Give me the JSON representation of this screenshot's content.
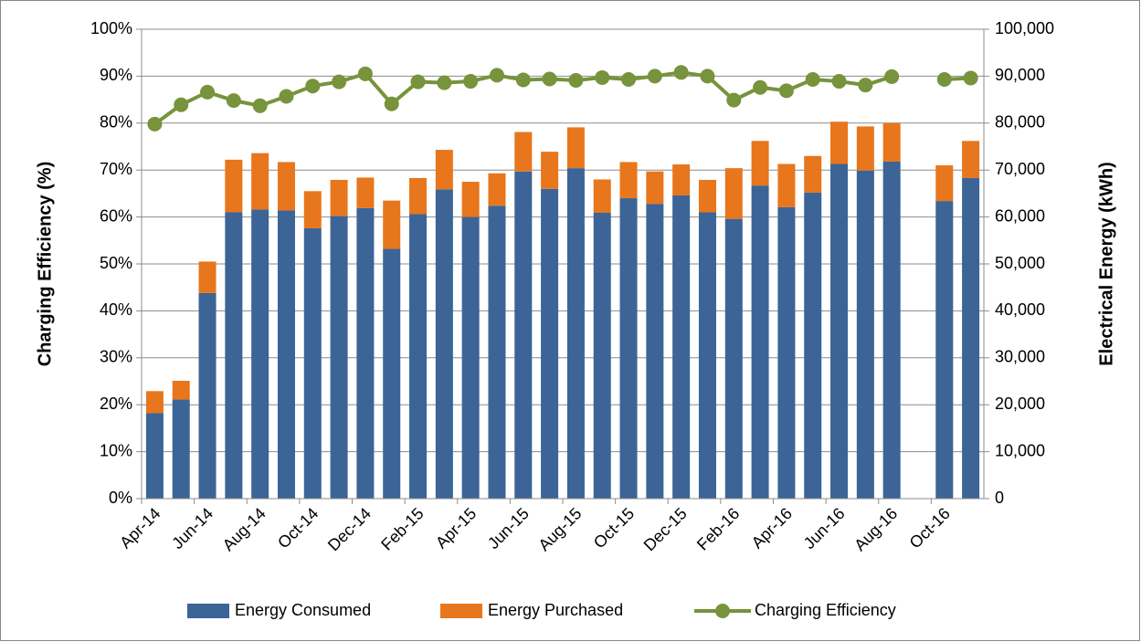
{
  "chart_data": {
    "type": "bar",
    "stacked": true,
    "categories": [
      "Apr-14",
      null,
      "Jun-14",
      null,
      "Aug-14",
      null,
      "Oct-14",
      null,
      "Dec-14",
      null,
      "Feb-15",
      null,
      "Apr-15",
      null,
      "Jun-15",
      null,
      "Aug-15",
      null,
      "Oct-15",
      null,
      "Dec-15",
      null,
      "Feb-16",
      null,
      "Apr-16",
      null,
      "Jun-16",
      null,
      "Aug-16",
      null,
      "Oct-16",
      null
    ],
    "series": [
      {
        "name": "Energy Consumed",
        "color": "#3c6496",
        "axis": "y2",
        "values": [
          18200,
          21100,
          43800,
          61000,
          61600,
          61400,
          57600,
          60200,
          61900,
          53200,
          60600,
          65900,
          60000,
          62400,
          69700,
          66000,
          70400,
          60900,
          64000,
          62800,
          64600,
          61000,
          59600,
          66700,
          62100,
          65200,
          71300,
          69900,
          71800,
          null,
          63400,
          68300
        ]
      },
      {
        "name": "Energy Purchased",
        "color": "#e8761c",
        "axis": "y2",
        "values": [
          4700,
          4000,
          6700,
          11200,
          12000,
          10300,
          7900,
          7700,
          6500,
          10300,
          7700,
          8400,
          7500,
          6900,
          8400,
          7900,
          8700,
          7100,
          7700,
          6900,
          6600,
          6900,
          10800,
          9500,
          9200,
          7800,
          9000,
          9400,
          8200,
          null,
          7600,
          7900
        ]
      },
      {
        "name": "Charging Efficiency",
        "color": "#77933c",
        "type": "line",
        "values": [
          79.8,
          83.9,
          86.6,
          84.8,
          83.7,
          85.7,
          87.9,
          88.8,
          90.5,
          84.1,
          88.8,
          88.6,
          88.9,
          90.2,
          89.2,
          89.4,
          89.1,
          89.7,
          89.3,
          90.0,
          90.8,
          90.0,
          84.9,
          87.6,
          86.9,
          89.3,
          88.9,
          88.1,
          89.9,
          null,
          89.3,
          89.6
        ]
      }
    ],
    "y_label": "Charging Efficiency (%)",
    "y2_label": "Electrical Energy (kWh)",
    "ylim": [
      0,
      100
    ],
    "yticks": [
      {
        "value": 0,
        "label": "0%"
      },
      {
        "value": 10,
        "label": "10%"
      },
      {
        "value": 20,
        "label": "20%"
      },
      {
        "value": 30,
        "label": "30%"
      },
      {
        "value": 40,
        "label": "40%"
      },
      {
        "value": 50,
        "label": "50%"
      },
      {
        "value": 60,
        "label": "60%"
      },
      {
        "value": 70,
        "label": "70%"
      },
      {
        "value": 80,
        "label": "80%"
      },
      {
        "value": 90,
        "label": "90%"
      },
      {
        "value": 100,
        "label": "100%"
      }
    ],
    "y2lim": [
      0,
      100000
    ],
    "y2ticks": [
      0,
      {
        "value": 10000,
        "label": "10,000"
      },
      {
        "value": 20000,
        "label": "20,000"
      },
      {
        "value": 30000,
        "label": "30,000"
      },
      {
        "value": 40000,
        "label": "40,000"
      },
      {
        "value": 50000,
        "label": "50,000"
      },
      {
        "value": 60000,
        "label": "60,000"
      },
      {
        "value": 70000,
        "label": "70,000"
      },
      {
        "value": 80000,
        "label": "80,000"
      },
      {
        "value": 90000,
        "label": "90,000"
      },
      {
        "value": 100000,
        "label": "100,000"
      }
    ],
    "grid": true,
    "legend": "bottom"
  }
}
